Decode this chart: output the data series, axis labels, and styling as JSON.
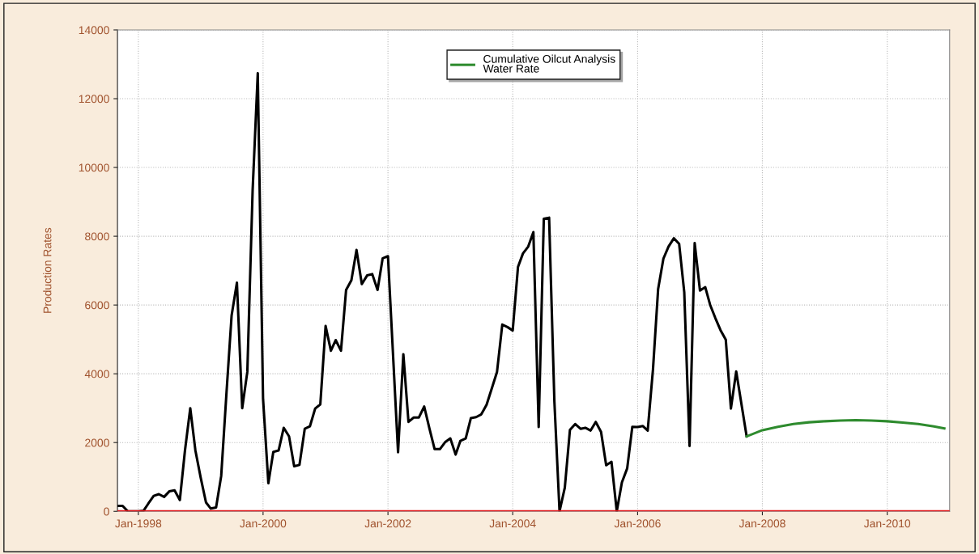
{
  "chart_data": {
    "type": "line",
    "ylabel": "Production Rates",
    "series": [
      {
        "color": "#000000",
        "x": [
          "1997-09",
          "1997-10",
          "1997-11",
          "1997-12",
          "1998-01",
          "1998-02",
          "1998-03",
          "1998-04",
          "1998-05",
          "1998-06",
          "1998-07",
          "1998-08",
          "1998-09",
          "1998-10",
          "1998-11",
          "1998-12",
          "1999-01",
          "1999-02",
          "1999-03",
          "1999-04",
          "1999-05",
          "1999-06",
          "1999-07",
          "1999-08",
          "1999-09",
          "1999-10",
          "1999-11",
          "1999-12",
          "2000-01",
          "2000-02",
          "2000-03",
          "2000-04",
          "2000-05",
          "2000-06",
          "2000-07",
          "2000-08",
          "2000-09",
          "2000-10",
          "2000-11",
          "2000-12",
          "2001-01",
          "2001-02",
          "2001-03",
          "2001-04",
          "2001-05",
          "2001-06",
          "2001-07",
          "2001-08",
          "2001-09",
          "2001-10",
          "2001-11",
          "2001-12",
          "2002-01",
          "2002-03",
          "2002-04",
          "2002-05",
          "2002-06",
          "2002-07",
          "2002-08",
          "2002-09",
          "2002-10",
          "2002-11",
          "2002-12",
          "2003-01",
          "2003-02",
          "2003-03",
          "2003-04",
          "2003-05",
          "2003-06",
          "2003-07",
          "2003-08",
          "2003-09",
          "2003-10",
          "2003-11",
          "2003-12",
          "2004-01",
          "2004-02",
          "2004-03",
          "2004-04",
          "2004-05",
          "2004-06",
          "2004-07",
          "2004-08",
          "2004-09",
          "2004-10",
          "2004-11",
          "2004-12",
          "2005-01",
          "2005-02",
          "2005-03",
          "2005-04",
          "2005-05",
          "2005-06",
          "2005-07",
          "2005-08",
          "2005-09",
          "2005-10",
          "2005-11",
          "2005-12",
          "2006-01",
          "2006-02",
          "2006-03",
          "2006-04",
          "2006-05",
          "2006-06",
          "2006-07",
          "2006-08",
          "2006-09",
          "2006-10",
          "2006-11",
          "2006-12",
          "2007-01",
          "2007-02",
          "2007-03",
          "2007-04",
          "2007-05",
          "2007-06",
          "2007-07",
          "2007-08",
          "2007-10"
        ],
        "values": [
          160,
          160,
          0,
          0,
          0,
          20,
          230,
          450,
          500,
          420,
          580,
          610,
          330,
          1770,
          3000,
          1770,
          980,
          260,
          80,
          110,
          1030,
          3450,
          5700,
          6650,
          3000,
          4060,
          9340,
          12740,
          3270,
          820,
          1730,
          1770,
          2430,
          2180,
          1310,
          1350,
          2400,
          2470,
          2990,
          3110,
          5390,
          4670,
          4980,
          4670,
          6440,
          6720,
          7600,
          6610,
          6860,
          6900,
          6440,
          7360,
          7420,
          1720,
          4570,
          2600,
          2730,
          2730,
          3050,
          2400,
          1810,
          1810,
          2010,
          2120,
          1650,
          2050,
          2120,
          2710,
          2740,
          2820,
          3100,
          3580,
          4050,
          5430,
          5360,
          5260,
          7110,
          7500,
          7700,
          8120,
          2450,
          8510,
          8540,
          3190,
          0,
          690,
          2370,
          2540,
          2400,
          2430,
          2350,
          2600,
          2310,
          1340,
          1440,
          0,
          840,
          1250,
          2460,
          2450,
          2480,
          2350,
          4130,
          6460,
          7350,
          7700,
          7940,
          7780,
          6370,
          1900,
          7800,
          6420,
          6520,
          6010,
          5620,
          5270,
          4990,
          2990,
          4070,
          2180
        ]
      },
      {
        "name": "Cumulative Oilcut Analysis\nWater Rate",
        "color": "#2e8b2e",
        "x": [
          "2007-10",
          "2008-01",
          "2008-04",
          "2008-07",
          "2008-10",
          "2009-01",
          "2009-04",
          "2009-07",
          "2009-10",
          "2010-01",
          "2010-04",
          "2010-07",
          "2010-10",
          "2010-12"
        ],
        "values": [
          2180,
          2360,
          2460,
          2540,
          2590,
          2620,
          2640,
          2650,
          2640,
          2620,
          2580,
          2540,
          2470,
          2410
        ]
      }
    ],
    "xlim": [
      "1997-09-01",
      "2011-01-01"
    ],
    "xticks": [
      {
        "value": "1998-01-01",
        "label": "Jan-1998"
      },
      {
        "value": "2000-01-01",
        "label": "Jan-2000"
      },
      {
        "value": "2002-01-01",
        "label": "Jan-2002"
      },
      {
        "value": "2004-01-01",
        "label": "Jan-2004"
      },
      {
        "value": "2006-01-01",
        "label": "Jan-2006"
      },
      {
        "value": "2008-01-01",
        "label": "Jan-2008"
      },
      {
        "value": "2010-01-01",
        "label": "Jan-2010"
      }
    ],
    "ylim": [
      0,
      14000
    ],
    "yticks": [
      0,
      2000,
      4000,
      6000,
      8000,
      10000,
      12000,
      14000
    ],
    "ref_lines": [
      {
        "axis": "y",
        "value": 0,
        "color": "#e41a1c"
      }
    ],
    "grid": true,
    "legend": "top",
    "marker": "none",
    "line_style": "solid"
  }
}
